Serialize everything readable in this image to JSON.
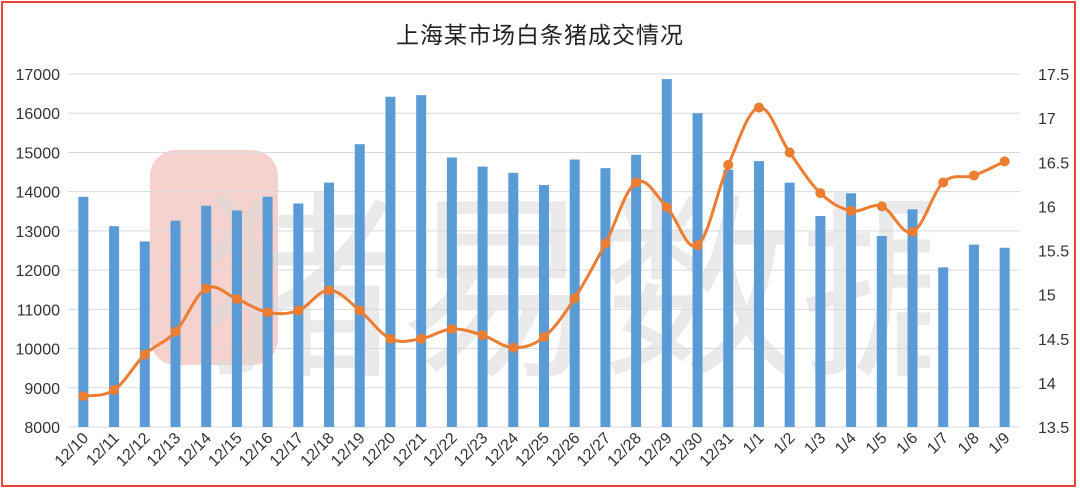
{
  "chart_data": {
    "type": "bar+line",
    "title": "上海某市场白条猪成交情况",
    "categories": [
      "12/10",
      "12/11",
      "12/12",
      "12/13",
      "12/14",
      "12/15",
      "12/16",
      "12/17",
      "12/18",
      "12/19",
      "12/20",
      "12/21",
      "12/22",
      "12/23",
      "12/24",
      "12/25",
      "12/26",
      "12/27",
      "12/28",
      "12/29",
      "12/30",
      "12/31",
      "1/1",
      "1/2",
      "1/3",
      "1/4",
      "1/5",
      "1/6",
      "1/7",
      "1/8",
      "1/9"
    ],
    "series": [
      {
        "type": "bar",
        "axis": "left",
        "color": "#5b9bd5",
        "values": [
          13870,
          13120,
          12730,
          13260,
          13640,
          13520,
          13870,
          13700,
          14230,
          15210,
          16420,
          16460,
          14870,
          14640,
          14480,
          14170,
          14820,
          14600,
          14940,
          16870,
          16000,
          14560,
          14780,
          14230,
          13380,
          13960,
          12870,
          13550,
          12070,
          12650,
          12570
        ]
      },
      {
        "type": "line",
        "axis": "right",
        "color": "#ed7d31",
        "smooth": true,
        "values": [
          13.85,
          13.92,
          14.32,
          14.58,
          15.07,
          14.95,
          14.8,
          14.82,
          15.05,
          14.82,
          14.5,
          14.5,
          14.61,
          14.54,
          14.4,
          14.52,
          14.96,
          15.58,
          16.27,
          15.99,
          15.56,
          16.47,
          17.12,
          16.61,
          16.15,
          15.95,
          16.0,
          15.71,
          16.27,
          16.35,
          16.51
        ]
      }
    ],
    "y_left": {
      "min": 8000,
      "max": 17000,
      "step": 1000,
      "ticks": [
        "8000",
        "9000",
        "10000",
        "11000",
        "12000",
        "13000",
        "14000",
        "15000",
        "16000",
        "17000"
      ]
    },
    "y_right": {
      "min": 13.5,
      "max": 17.5,
      "step": 0.5,
      "ticks": [
        "13.5",
        "14",
        "14.5",
        "15",
        "15.5",
        "16",
        "16.5",
        "17",
        "17.5"
      ]
    },
    "grid": true,
    "legend": "none",
    "watermark": "猪易数据",
    "border_color": "#e8453c"
  }
}
